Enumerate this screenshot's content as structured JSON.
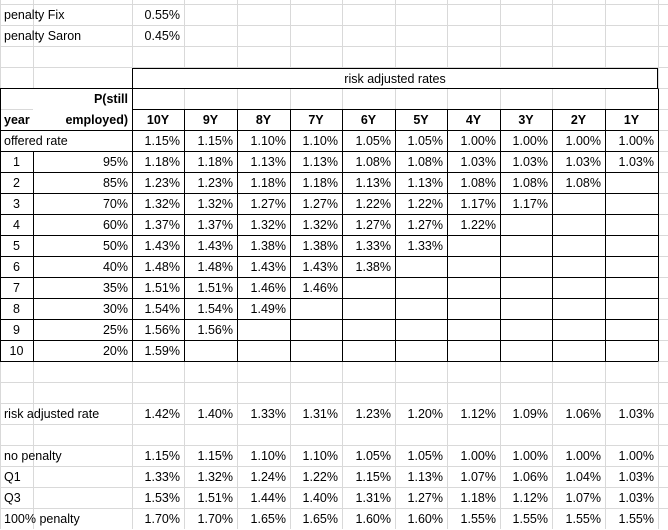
{
  "penalties": [
    {
      "label": "penalty Fix",
      "value": "0.55%"
    },
    {
      "label": "penalty Saron",
      "value": "0.45%"
    }
  ],
  "table": {
    "title": "risk adjusted rates",
    "year_header": "year",
    "p_header_1": "P(still",
    "p_header_2": "employed)",
    "columns": [
      "10Y",
      "9Y",
      "8Y",
      "7Y",
      "6Y",
      "5Y",
      "4Y",
      "3Y",
      "2Y",
      "1Y"
    ],
    "offered_label": "offered rate",
    "offered": [
      "1.15%",
      "1.15%",
      "1.10%",
      "1.10%",
      "1.05%",
      "1.05%",
      "1.00%",
      "1.00%",
      "1.00%",
      "1.00%"
    ],
    "rows": [
      {
        "year": "1",
        "p": "95%",
        "vals": [
          "1.18%",
          "1.18%",
          "1.13%",
          "1.13%",
          "1.08%",
          "1.08%",
          "1.03%",
          "1.03%",
          "1.03%",
          "1.03%"
        ]
      },
      {
        "year": "2",
        "p": "85%",
        "vals": [
          "1.23%",
          "1.23%",
          "1.18%",
          "1.18%",
          "1.13%",
          "1.13%",
          "1.08%",
          "1.08%",
          "1.08%"
        ]
      },
      {
        "year": "3",
        "p": "70%",
        "vals": [
          "1.32%",
          "1.32%",
          "1.27%",
          "1.27%",
          "1.22%",
          "1.22%",
          "1.17%",
          "1.17%"
        ]
      },
      {
        "year": "4",
        "p": "60%",
        "vals": [
          "1.37%",
          "1.37%",
          "1.32%",
          "1.32%",
          "1.27%",
          "1.27%",
          "1.22%"
        ]
      },
      {
        "year": "5",
        "p": "50%",
        "vals": [
          "1.43%",
          "1.43%",
          "1.38%",
          "1.38%",
          "1.33%",
          "1.33%"
        ]
      },
      {
        "year": "6",
        "p": "40%",
        "vals": [
          "1.48%",
          "1.48%",
          "1.43%",
          "1.43%",
          "1.38%"
        ]
      },
      {
        "year": "7",
        "p": "35%",
        "vals": [
          "1.51%",
          "1.51%",
          "1.46%",
          "1.46%"
        ]
      },
      {
        "year": "8",
        "p": "30%",
        "vals": [
          "1.54%",
          "1.54%",
          "1.49%"
        ]
      },
      {
        "year": "9",
        "p": "25%",
        "vals": [
          "1.56%",
          "1.56%"
        ]
      },
      {
        "year": "10",
        "p": "20%",
        "vals": [
          "1.59%"
        ]
      }
    ]
  },
  "risk_adjusted": {
    "label": "risk adjusted rate",
    "values": [
      "1.42%",
      "1.40%",
      "1.33%",
      "1.31%",
      "1.23%",
      "1.20%",
      "1.12%",
      "1.09%",
      "1.06%",
      "1.03%"
    ]
  },
  "scenarios": [
    {
      "label": "no penalty",
      "values": [
        "1.15%",
        "1.15%",
        "1.10%",
        "1.10%",
        "1.05%",
        "1.05%",
        "1.00%",
        "1.00%",
        "1.00%",
        "1.00%"
      ]
    },
    {
      "label": "Q1",
      "values": [
        "1.33%",
        "1.32%",
        "1.24%",
        "1.22%",
        "1.15%",
        "1.13%",
        "1.07%",
        "1.06%",
        "1.04%",
        "1.03%"
      ]
    },
    {
      "label": "Q3",
      "values": [
        "1.53%",
        "1.51%",
        "1.44%",
        "1.40%",
        "1.31%",
        "1.27%",
        "1.18%",
        "1.12%",
        "1.07%",
        "1.03%"
      ]
    },
    {
      "label": "100% penalty",
      "values": [
        "1.70%",
        "1.70%",
        "1.65%",
        "1.65%",
        "1.60%",
        "1.60%",
        "1.55%",
        "1.55%",
        "1.55%",
        "1.55%"
      ]
    }
  ]
}
